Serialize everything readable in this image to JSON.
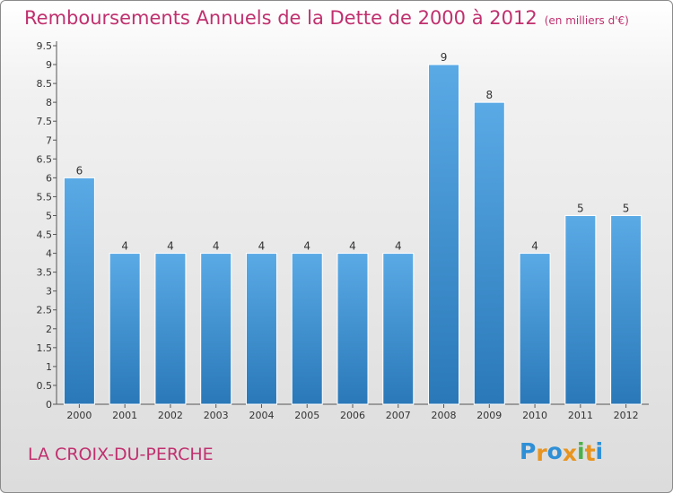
{
  "title": "Remboursements Annuels de la Dette de 2000 à 2012",
  "unit": "(en milliers d'€)",
  "commune": "LA CROIX-DU-PERCHE",
  "logo": {
    "text": "Proxiti",
    "letters": [
      "P",
      "r",
      "o",
      "x",
      "i",
      "t",
      "i"
    ],
    "colors": [
      "#2e8fd6",
      "#e8941e",
      "#2e8fd6",
      "#e8941e",
      "#4ab04a",
      "#e8941e",
      "#2e8fd6"
    ]
  },
  "colors": {
    "title": "#c0306e",
    "bar_light": "#5aaae6",
    "bar_dark": "#2a78b8"
  },
  "chart_data": {
    "type": "bar",
    "title": "Remboursements Annuels de la Dette de 2000 à 2012",
    "xlabel": "",
    "ylabel": "",
    "categories": [
      "2000",
      "2001",
      "2002",
      "2003",
      "2004",
      "2005",
      "2006",
      "2007",
      "2008",
      "2009",
      "2010",
      "2011",
      "2012"
    ],
    "values": [
      6,
      4,
      4,
      4,
      4,
      4,
      4,
      4,
      9,
      8,
      4,
      5,
      5
    ],
    "value_labels": [
      "6",
      "4",
      "4",
      "4",
      "4",
      "4",
      "4",
      "4",
      "9",
      "8",
      "4",
      "5",
      "5"
    ],
    "ylim": [
      0,
      9.5
    ],
    "yticks": [
      "0",
      "0.5",
      "1",
      "1.5",
      "2",
      "2.5",
      "3",
      "3.5",
      "4",
      "4.5",
      "5",
      "5.5",
      "6",
      "6.5",
      "7",
      "7.5",
      "8",
      "8.5",
      "9",
      "9.5"
    ],
    "grid": false,
    "legend": "none"
  }
}
